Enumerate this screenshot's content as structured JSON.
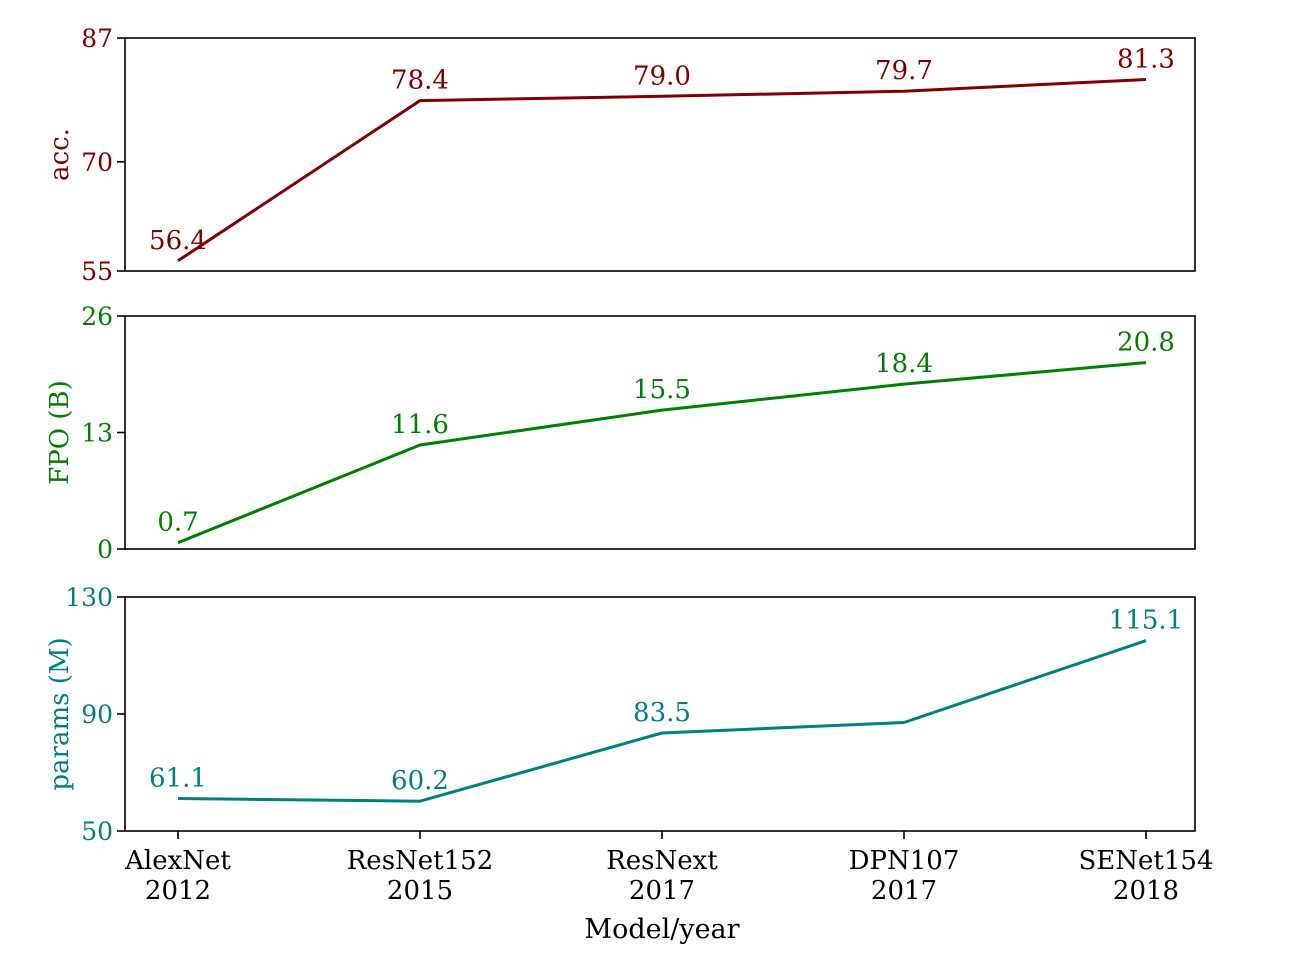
{
  "chart_data": {
    "type": "line",
    "xlabel": "Model/year",
    "categories": [
      {
        "model": "AlexNet",
        "year": "2012"
      },
      {
        "model": "ResNet152",
        "year": "2015"
      },
      {
        "model": "ResNext",
        "year": "2017"
      },
      {
        "model": "DPN107",
        "year": "2017"
      },
      {
        "model": "SENet154",
        "year": "2018"
      }
    ],
    "panels": [
      {
        "ylabel": "acc.",
        "color": "#800000",
        "ylim": [
          55,
          87
        ],
        "yticks": [
          "55",
          "70",
          "87"
        ],
        "values": [
          56.4,
          78.4,
          79.0,
          79.7,
          81.3
        ],
        "labels": [
          "56.4",
          "78.4",
          "79.0",
          "79.7",
          "81.3"
        ]
      },
      {
        "ylabel": "FPO (B)",
        "color": "#008000",
        "ylim": [
          0,
          26
        ],
        "yticks": [
          "0",
          "13",
          "26"
        ],
        "values": [
          0.7,
          11.6,
          15.5,
          18.4,
          20.8
        ],
        "labels": [
          "0.7",
          "11.6",
          "15.5",
          "18.4",
          "20.8"
        ]
      },
      {
        "ylabel": "params (M)",
        "color": "#008080",
        "ylim": [
          50,
          130
        ],
        "yticks": [
          "50",
          "90",
          "130"
        ],
        "values": [
          61.1,
          60.2,
          83.5,
          87.1,
          115.1
        ],
        "labels": [
          "61.1",
          "60.2",
          "83.5",
          null,
          "115.1"
        ]
      }
    ]
  }
}
